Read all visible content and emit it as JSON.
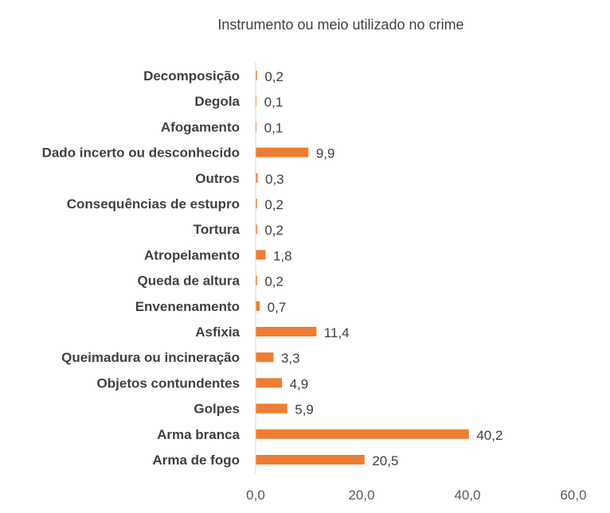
{
  "chart_data": {
    "type": "bar",
    "orientation": "horizontal",
    "title": "Instrumento ou meio utilizado no crime",
    "xlabel": "",
    "ylabel": "",
    "categories": [
      "Decomposição",
      "Degola",
      "Afogamento",
      "Dado incerto ou desconhecido",
      "Outros",
      "Consequências de estupro",
      "Tortura",
      "Atropelamento",
      "Queda de altura",
      "Envenenamento",
      "Asfixia",
      "Queimadura ou incineração",
      "Objetos contundentes",
      "Golpes",
      "Arma branca",
      "Arma de fogo"
    ],
    "values": [
      0.2,
      0.1,
      0.1,
      9.9,
      0.3,
      0.2,
      0.2,
      1.8,
      0.2,
      0.7,
      11.4,
      3.3,
      4.9,
      5.9,
      40.2,
      20.5
    ],
    "value_labels": [
      "0,2",
      "0,1",
      "0,1",
      "9,9",
      "0,3",
      "0,2",
      "0,2",
      "1,8",
      "0,2",
      "0,7",
      "11,4",
      "3,3",
      "4,9",
      "5,9",
      "40,2",
      "20,5"
    ],
    "xlim": [
      0,
      60
    ],
    "x_ticks": [
      0,
      20,
      40,
      60
    ],
    "x_tick_labels": [
      "0,0",
      "20,0",
      "40,0",
      "60,0"
    ],
    "grid": false,
    "bar_color": "#ED7D31",
    "axis_color": "#D9D9D9",
    "text_color": "#404040"
  }
}
